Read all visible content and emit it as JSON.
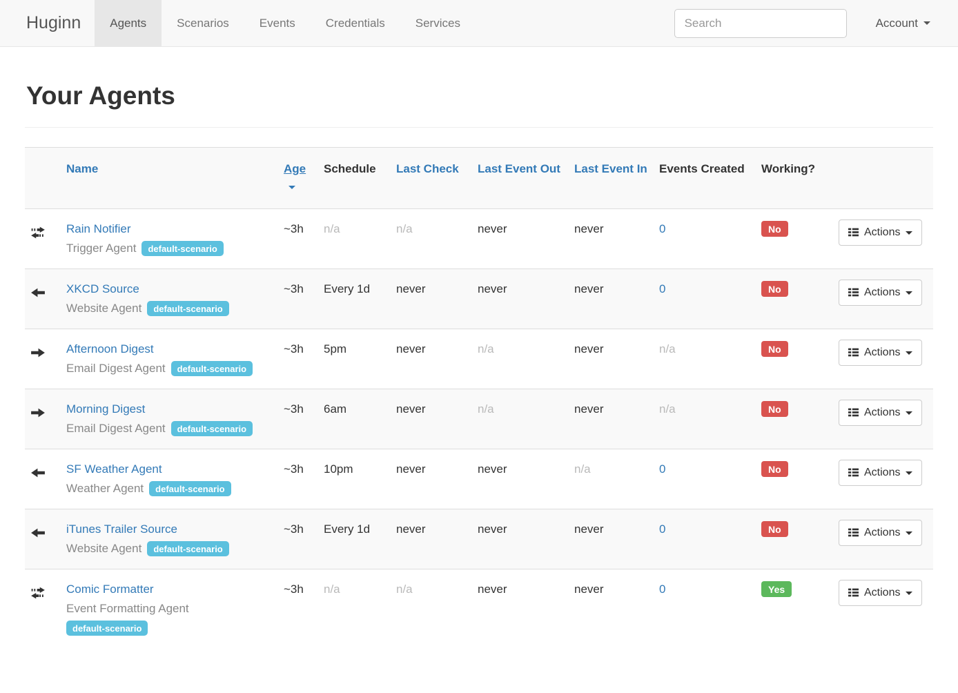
{
  "navbar": {
    "brand": "Huginn",
    "items": [
      {
        "label": "Agents",
        "active": true
      },
      {
        "label": "Scenarios",
        "active": false
      },
      {
        "label": "Events",
        "active": false
      },
      {
        "label": "Credentials",
        "active": false
      },
      {
        "label": "Services",
        "active": false
      }
    ],
    "search": {
      "placeholder": "Search"
    },
    "account": {
      "label": "Account"
    }
  },
  "page": {
    "title": "Your Agents"
  },
  "table": {
    "headers": {
      "name": "Name",
      "age": "Age",
      "schedule": "Schedule",
      "last_check": "Last Check",
      "last_event_out": "Last Event Out",
      "last_event_in": "Last Event In",
      "events_created": "Events Created",
      "working": "Working?"
    },
    "sort": {
      "column": "age",
      "direction": "desc"
    },
    "actions_label": "Actions",
    "rows": [
      {
        "icon": "exchange",
        "name": "Rain Notifier",
        "type": "Trigger Agent",
        "scenario": "default-scenario",
        "age": "~3h",
        "schedule": "n/a",
        "last_check": "n/a",
        "last_event_out": "never",
        "last_event_in": "never",
        "events_created": "0",
        "working": "No"
      },
      {
        "icon": "arrow-left",
        "name": "XKCD Source",
        "type": "Website Agent",
        "scenario": "default-scenario",
        "age": "~3h",
        "schedule": "Every 1d",
        "last_check": "never",
        "last_event_out": "never",
        "last_event_in": "never",
        "events_created": "0",
        "working": "No"
      },
      {
        "icon": "arrow-right",
        "name": "Afternoon Digest",
        "type": "Email Digest Agent",
        "scenario": "default-scenario",
        "age": "~3h",
        "schedule": "5pm",
        "last_check": "never",
        "last_event_out": "n/a",
        "last_event_in": "never",
        "events_created": "n/a",
        "working": "No"
      },
      {
        "icon": "arrow-right",
        "name": "Morning Digest",
        "type": "Email Digest Agent",
        "scenario": "default-scenario",
        "age": "~3h",
        "schedule": "6am",
        "last_check": "never",
        "last_event_out": "n/a",
        "last_event_in": "never",
        "events_created": "n/a",
        "working": "No"
      },
      {
        "icon": "arrow-left",
        "name": "SF Weather Agent",
        "type": "Weather Agent",
        "scenario": "default-scenario",
        "age": "~3h",
        "schedule": "10pm",
        "last_check": "never",
        "last_event_out": "never",
        "last_event_in": "n/a",
        "events_created": "0",
        "working": "No"
      },
      {
        "icon": "arrow-left",
        "name": "iTunes Trailer Source",
        "type": "Website Agent",
        "scenario": "default-scenario",
        "age": "~3h",
        "schedule": "Every 1d",
        "last_check": "never",
        "last_event_out": "never",
        "last_event_in": "never",
        "events_created": "0",
        "working": "No"
      },
      {
        "icon": "exchange",
        "name": "Comic Formatter",
        "type": "Event Formatting Agent",
        "scenario": "default-scenario",
        "age": "~3h",
        "schedule": "n/a",
        "last_check": "n/a",
        "last_event_out": "never",
        "last_event_in": "never",
        "events_created": "0",
        "working": "Yes"
      }
    ]
  },
  "colors": {
    "link": "#337ab7",
    "badge_info": "#5bc0de",
    "label_danger": "#d9534f",
    "label_success": "#5cb85c",
    "muted": "#b9b9b9",
    "stripe": "#f9f9f9",
    "navbar_bg": "#f8f8f8",
    "navbar_active_bg": "#e7e7e7"
  }
}
